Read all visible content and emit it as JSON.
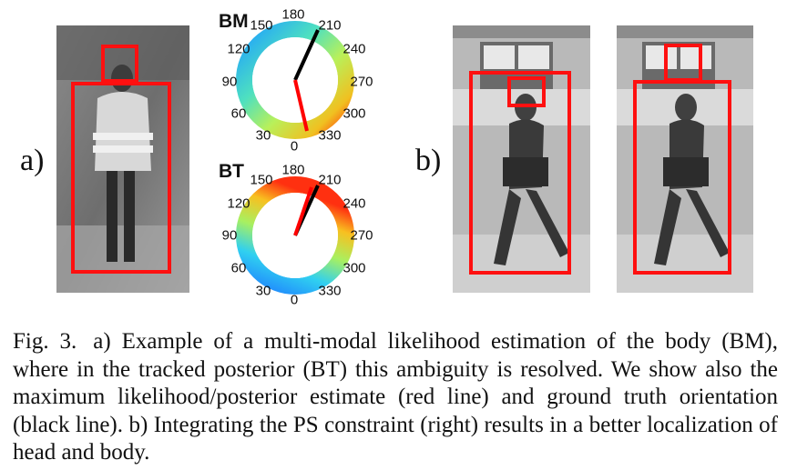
{
  "panel_a": {
    "label": "a)",
    "dials": [
      {
        "title": "BM",
        "ticks": [
          "180",
          "210",
          "240",
          "270",
          "300",
          "330",
          "0",
          "30",
          "60",
          "90",
          "120",
          "150"
        ]
      },
      {
        "title": "BT",
        "ticks": [
          "180",
          "210",
          "240",
          "270",
          "300",
          "330",
          "0",
          "30",
          "60",
          "90",
          "120",
          "150"
        ]
      }
    ]
  },
  "panel_b": {
    "label": "b)"
  },
  "caption": {
    "label": "Fig. 3.",
    "text": "a) Example of a multi-modal likelihood estimation of the body (BM), where in the tracked posterior (BT) this ambiguity is resolved. We show also the maximum likelihood/posterior estimate (red line) and ground truth orientation (black line). b) Integrating the PS constraint (right) results in a better localization of head and body."
  },
  "colors": {
    "box": "#ff1010",
    "estimate_line": "#ff0000",
    "ground_truth_line": "#000000"
  }
}
